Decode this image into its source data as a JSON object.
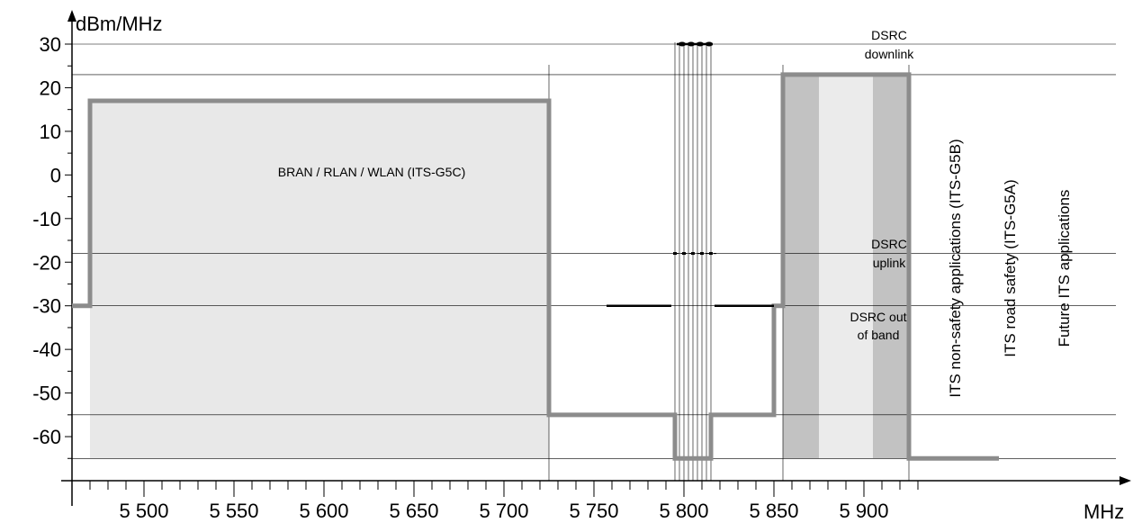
{
  "chart_data": {
    "type": "line",
    "xlabel": "MHz",
    "ylabel": "dBm/MHz",
    "xlim": [
      5460,
      5975
    ],
    "ylim": [
      -72,
      36
    ],
    "xticks_major": [
      5500,
      5550,
      5600,
      5650,
      5700,
      5750,
      5800,
      5850,
      5900
    ],
    "xtick_labels": [
      "5 500",
      "5 550",
      "5 600",
      "5 650",
      "5 700",
      "5 750",
      "5 800",
      "5 850",
      "5 900"
    ],
    "xticks_minor_step": 10,
    "yticks_major": [
      30,
      20,
      10,
      0,
      -10,
      -20,
      -30,
      -40,
      -50,
      -60
    ],
    "ytick_labels": [
      "30",
      "20",
      "10",
      "0",
      "-10",
      "-20",
      "-30",
      "-40",
      "-50",
      "-60"
    ],
    "yticks_minor_step": 5,
    "reference_lines_y": [
      30,
      23,
      -18,
      -30,
      -55,
      -65
    ],
    "reference_lines_x": [
      5725,
      5855,
      5925
    ],
    "dsrc_channel_lines_x": [
      5795,
      5797.5,
      5800,
      5802.5,
      5805,
      5807.5,
      5810,
      5812.5,
      5815
    ],
    "shaded_regions": [
      {
        "x": [
          5470,
          5725
        ],
        "y": [
          -65,
          17
        ],
        "color": "#e8e8e8"
      },
      {
        "x": [
          5855,
          5875
        ],
        "y": [
          -65,
          23
        ],
        "color": "#c2c2c2"
      },
      {
        "x": [
          5875,
          5905
        ],
        "y": [
          -65,
          23
        ],
        "color": "#ebebeb"
      },
      {
        "x": [
          5905,
          5925
        ],
        "y": [
          -65,
          23
        ],
        "color": "#c2c2c2"
      }
    ],
    "series": [
      {
        "color": "#8c8c8c",
        "x": [
          5460,
          5470,
          5470,
          5725,
          5725,
          5795,
          5795,
          5815,
          5815,
          5850,
          5850,
          5855,
          5855,
          5925,
          5925,
          5975
        ],
        "y": [
          -30,
          -30,
          17,
          17,
          -55,
          -55,
          -65,
          -65,
          -55,
          -55,
          -30,
          -30,
          23,
          23,
          -65,
          -65
        ]
      }
    ],
    "dsrc_out_of_band_segments": [
      {
        "x": [
          5757,
          5793
        ],
        "y": [
          -30,
          -30
        ]
      },
      {
        "x": [
          5817,
          5850
        ],
        "y": [
          -30,
          -30
        ]
      }
    ],
    "dsrc_downlink_points": {
      "x": [
        5800,
        5805,
        5810,
        5815
      ],
      "y": 30
    },
    "dsrc_uplink_points": {
      "x": [
        5795,
        5800,
        5805,
        5810,
        5815
      ],
      "y": -18
    },
    "annotations": {
      "wlan": "BRAN / RLAN / WLAN (ITS-G5C)",
      "dsrc_downlink": [
        "DSRC",
        "downlink"
      ],
      "dsrc_uplink": [
        "DSRC",
        "uplink"
      ],
      "dsrc_oob": [
        "DSRC out",
        "of band"
      ],
      "band_g5b": "ITS non-safety applications (ITS-G5B)",
      "band_g5a": "ITS road safety (ITS-G5A)",
      "band_future": "Future ITS applications"
    },
    "colors": {
      "mask": "#8c8c8c",
      "dsrc": "#000000",
      "gridline": "#000000"
    }
  }
}
